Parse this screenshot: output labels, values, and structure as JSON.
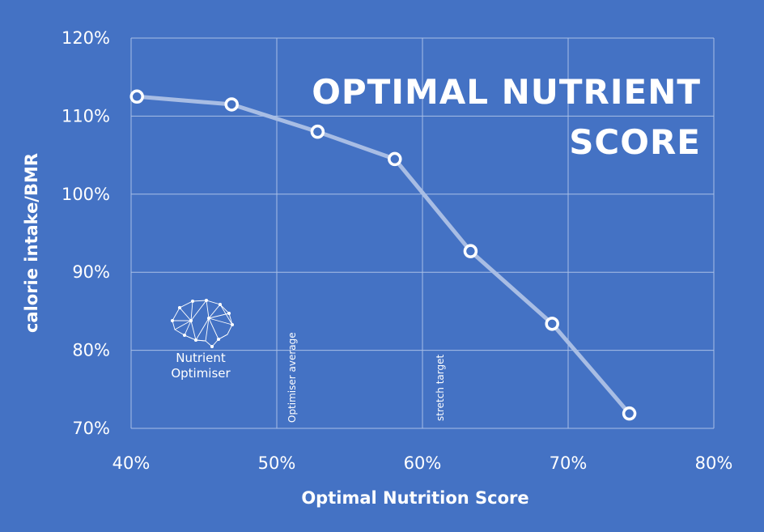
{
  "chart_data": {
    "type": "line",
    "title_lines": [
      "OPTIMAL NUTRIENT",
      "SCORE"
    ],
    "xlabel": "Optimal Nutrition Score",
    "ylabel": "calorie intake/BMR",
    "xlim": [
      40,
      80
    ],
    "ylim": [
      70,
      120
    ],
    "x_ticks": [
      40,
      50,
      60,
      70,
      80
    ],
    "x_tick_labels": [
      "40%",
      "50%",
      "60%",
      "70%",
      "80%"
    ],
    "y_ticks": [
      70,
      80,
      90,
      100,
      110,
      120
    ],
    "y_tick_labels": [
      "70%",
      "80%",
      "90%",
      "100%",
      "110%",
      "120%"
    ],
    "grid": true,
    "series": [
      {
        "name": "calorie intake/BMR",
        "x": [
          40.4,
          46.9,
          52.8,
          58.1,
          63.3,
          68.9,
          74.2
        ],
        "y": [
          112.5,
          111.5,
          108.0,
          104.5,
          92.7,
          83.4,
          71.9
        ]
      }
    ],
    "annotations": [
      {
        "text": "Optimiser average",
        "x": 51
      },
      {
        "text": "stretch target",
        "x": 61
      }
    ]
  },
  "logo": {
    "icon": "brain-network-icon",
    "line1": "Nutrient",
    "line2": "Optimiser"
  }
}
